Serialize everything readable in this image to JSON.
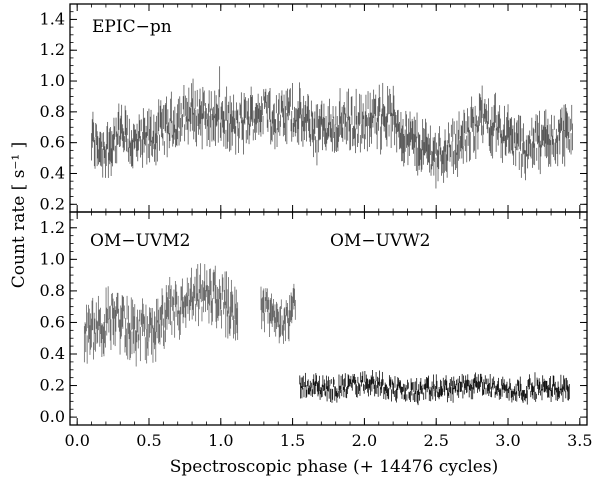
{
  "chart_data": {
    "type": "scatter",
    "xlabel": "Spectroscopic phase (+ 14476 cycles)",
    "ylabel": "Count rate  [ s⁻¹ ]",
    "xlim": [
      -0.05,
      3.55
    ],
    "x_ticks": [
      "0.0",
      "0.5",
      "1.0",
      "1.5",
      "2.0",
      "2.5",
      "3.0",
      "3.5"
    ],
    "panels": [
      {
        "label": "EPIC−pn",
        "ylim": [
          0.15,
          1.5
        ],
        "y_ticks": [
          "0.2",
          "0.4",
          "0.6",
          "0.8",
          "1.0",
          "1.2",
          "1.4"
        ],
        "series": [
          {
            "x_range": [
              0.1,
              3.45
            ],
            "color": "#555555",
            "profile": [
              [
                0.1,
                0.62
              ],
              [
                0.2,
                0.55
              ],
              [
                0.3,
                0.66
              ],
              [
                0.4,
                0.58
              ],
              [
                0.5,
                0.62
              ],
              [
                0.6,
                0.68
              ],
              [
                0.7,
                0.74
              ],
              [
                0.8,
                0.8
              ],
              [
                0.9,
                0.78
              ],
              [
                1.0,
                0.76
              ],
              [
                1.1,
                0.7
              ],
              [
                1.2,
                0.75
              ],
              [
                1.3,
                0.82
              ],
              [
                1.4,
                0.74
              ],
              [
                1.5,
                0.8
              ],
              [
                1.6,
                0.72
              ],
              [
                1.7,
                0.68
              ],
              [
                1.8,
                0.72
              ],
              [
                1.9,
                0.74
              ],
              [
                2.0,
                0.7
              ],
              [
                2.1,
                0.78
              ],
              [
                2.2,
                0.76
              ],
              [
                2.3,
                0.62
              ],
              [
                2.4,
                0.58
              ],
              [
                2.5,
                0.52
              ],
              [
                2.6,
                0.58
              ],
              [
                2.7,
                0.62
              ],
              [
                2.8,
                0.76
              ],
              [
                2.9,
                0.72
              ],
              [
                3.0,
                0.64
              ],
              [
                3.1,
                0.56
              ],
              [
                3.2,
                0.6
              ],
              [
                3.3,
                0.62
              ],
              [
                3.4,
                0.68
              ],
              [
                3.45,
                0.64
              ]
            ],
            "noise": 0.12
          }
        ]
      },
      {
        "label_left": "OM−UVM2",
        "label_right": "OM−UVW2",
        "ylim": [
          -0.05,
          1.3
        ],
        "y_ticks": [
          "0.0",
          "0.2",
          "0.4",
          "0.6",
          "0.8",
          "1.0",
          "1.2"
        ],
        "series": [
          {
            "name": "OM−UVM2",
            "x_range": [
              0.05,
              1.12
            ],
            "color": "#666666",
            "profile": [
              [
                0.05,
                0.52
              ],
              [
                0.15,
                0.55
              ],
              [
                0.25,
                0.65
              ],
              [
                0.35,
                0.58
              ],
              [
                0.45,
                0.52
              ],
              [
                0.55,
                0.55
              ],
              [
                0.65,
                0.65
              ],
              [
                0.75,
                0.7
              ],
              [
                0.85,
                0.75
              ],
              [
                0.95,
                0.78
              ],
              [
                1.05,
                0.7
              ],
              [
                1.12,
                0.68
              ]
            ],
            "noise": 0.12
          },
          {
            "name": "OM−UVM2",
            "x_range": [
              1.28,
              1.52
            ],
            "color": "#666666",
            "profile": [
              [
                1.28,
                0.7
              ],
              [
                1.4,
                0.62
              ],
              [
                1.52,
                0.68
              ]
            ],
            "noise": 0.1
          },
          {
            "name": "OM−UVW2",
            "x_range": [
              1.55,
              3.43
            ],
            "color": "#111111",
            "profile": [
              [
                1.55,
                0.2
              ],
              [
                1.8,
                0.18
              ],
              [
                2.05,
                0.22
              ],
              [
                2.3,
                0.16
              ],
              [
                2.55,
                0.18
              ],
              [
                2.8,
                0.2
              ],
              [
                3.05,
                0.17
              ],
              [
                3.43,
                0.19
              ]
            ],
            "noise": 0.05
          }
        ]
      }
    ]
  }
}
